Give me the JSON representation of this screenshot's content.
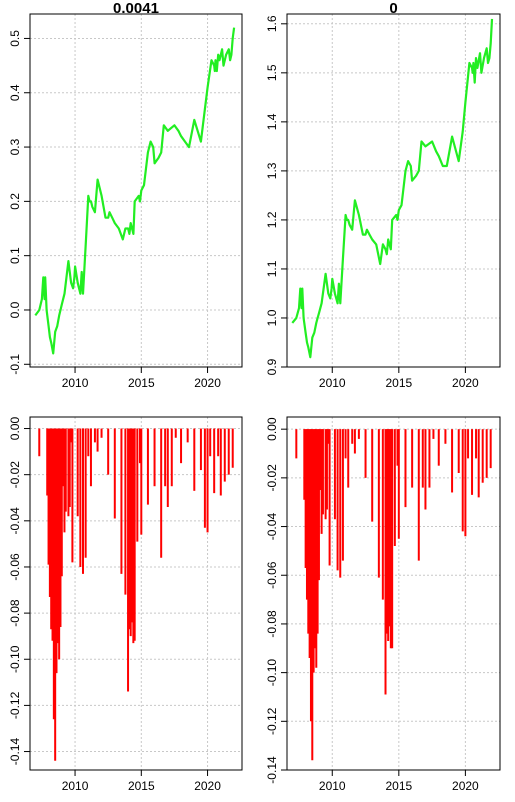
{
  "chart_data": [
    {
      "type": "line",
      "title": "0.0041",
      "xlabel": "",
      "ylabel": "",
      "xlim": [
        2006.6,
        2022.6
      ],
      "ylim": [
        -0.105,
        0.545
      ],
      "x_ticks": [
        "2010",
        "2015",
        "2020"
      ],
      "y_ticks": [
        "-0.1",
        "0.0",
        "0.1",
        "0.2",
        "0.3",
        "0.4",
        "0.5"
      ],
      "grid": true,
      "series": [
        {
          "color": "#22ee22",
          "x": [
            2007.0,
            2007.3,
            2007.5,
            2007.6,
            2007.7,
            2007.75,
            2007.85,
            2008.0,
            2008.1,
            2008.2,
            2008.35,
            2008.5,
            2008.65,
            2008.8,
            2008.9,
            2009.0,
            2009.2,
            2009.5,
            2009.7,
            2009.85,
            2009.95,
            2010.0,
            2010.2,
            2010.4,
            2010.5,
            2010.6,
            2010.8,
            2011.0,
            2011.1,
            2011.2,
            2011.3,
            2011.5,
            2011.7,
            2012.0,
            2012.3,
            2012.5,
            2012.6,
            2012.8,
            2013.0,
            2013.3,
            2013.6,
            2013.8,
            2014.0,
            2014.1,
            2014.2,
            2014.4,
            2014.5,
            2014.8,
            2014.9,
            2015.0,
            2015.2,
            2015.5,
            2015.7,
            2015.9,
            2016.0,
            2016.3,
            2016.5,
            2016.7,
            2017.0,
            2017.5,
            2017.8,
            2018.0,
            2018.3,
            2018.6,
            2019.0,
            2019.5,
            2019.8,
            2020.0,
            2020.3,
            2020.5,
            2020.55,
            2020.6,
            2020.7,
            2020.8,
            2020.9,
            2021.1,
            2021.2,
            2021.4,
            2021.6,
            2021.7,
            2021.8,
            2021.9,
            2022.0
          ],
          "y": [
            -0.01,
            0.0,
            0.02,
            0.06,
            0.02,
            0.06,
            0.0,
            -0.03,
            -0.05,
            -0.06,
            -0.08,
            -0.04,
            -0.03,
            -0.01,
            0.0,
            0.01,
            0.03,
            0.09,
            0.05,
            0.04,
            0.06,
            0.08,
            0.05,
            0.03,
            0.07,
            0.03,
            0.12,
            0.21,
            0.2,
            0.2,
            0.19,
            0.18,
            0.24,
            0.21,
            0.17,
            0.17,
            0.18,
            0.17,
            0.16,
            0.15,
            0.13,
            0.15,
            0.15,
            0.14,
            0.16,
            0.14,
            0.2,
            0.21,
            0.2,
            0.22,
            0.23,
            0.29,
            0.31,
            0.3,
            0.27,
            0.28,
            0.29,
            0.34,
            0.33,
            0.34,
            0.33,
            0.32,
            0.31,
            0.3,
            0.35,
            0.31,
            0.37,
            0.41,
            0.46,
            0.45,
            0.44,
            0.46,
            0.44,
            0.47,
            0.46,
            0.48,
            0.45,
            0.47,
            0.48,
            0.46,
            0.47,
            0.5,
            0.52
          ]
        }
      ]
    },
    {
      "type": "line",
      "title": "0",
      "xlabel": "",
      "ylabel": "",
      "xlim": [
        2006.6,
        2022.6
      ],
      "ylim": [
        0.9,
        1.62
      ],
      "x_ticks": [
        "2010",
        "2015",
        "2020"
      ],
      "y_ticks": [
        "0.9",
        "1.0",
        "1.1",
        "1.2",
        "1.3",
        "1.4",
        "1.5",
        "1.6"
      ],
      "grid": true,
      "series": [
        {
          "color": "#22ee22",
          "x": [
            2007.0,
            2007.3,
            2007.5,
            2007.6,
            2007.7,
            2007.75,
            2007.85,
            2008.0,
            2008.1,
            2008.2,
            2008.35,
            2008.5,
            2008.65,
            2008.8,
            2008.9,
            2009.0,
            2009.2,
            2009.5,
            2009.7,
            2009.85,
            2009.95,
            2010.0,
            2010.2,
            2010.4,
            2010.5,
            2010.6,
            2010.8,
            2011.0,
            2011.1,
            2011.2,
            2011.3,
            2011.5,
            2011.7,
            2012.0,
            2012.3,
            2012.5,
            2012.6,
            2012.8,
            2013.0,
            2013.3,
            2013.6,
            2013.8,
            2014.0,
            2014.1,
            2014.2,
            2014.4,
            2014.5,
            2014.8,
            2014.9,
            2015.0,
            2015.2,
            2015.5,
            2015.7,
            2015.9,
            2016.0,
            2016.3,
            2016.5,
            2016.7,
            2017.0,
            2017.5,
            2017.8,
            2018.0,
            2018.3,
            2018.6,
            2019.0,
            2019.5,
            2019.8,
            2020.0,
            2020.3,
            2020.5,
            2020.55,
            2020.6,
            2020.7,
            2020.8,
            2020.9,
            2021.1,
            2021.2,
            2021.4,
            2021.6,
            2021.7,
            2021.8,
            2021.9,
            2022.0
          ],
          "y": [
            0.99,
            1.0,
            1.02,
            1.06,
            1.02,
            1.06,
            1.0,
            0.97,
            0.95,
            0.94,
            0.92,
            0.96,
            0.97,
            0.99,
            1.0,
            1.01,
            1.03,
            1.09,
            1.05,
            1.04,
            1.06,
            1.08,
            1.05,
            1.03,
            1.07,
            1.03,
            1.12,
            1.21,
            1.2,
            1.2,
            1.19,
            1.18,
            1.24,
            1.21,
            1.17,
            1.17,
            1.18,
            1.17,
            1.16,
            1.15,
            1.11,
            1.15,
            1.14,
            1.13,
            1.16,
            1.14,
            1.2,
            1.21,
            1.2,
            1.22,
            1.23,
            1.3,
            1.32,
            1.31,
            1.28,
            1.29,
            1.3,
            1.36,
            1.35,
            1.36,
            1.34,
            1.33,
            1.31,
            1.31,
            1.37,
            1.32,
            1.38,
            1.44,
            1.52,
            1.51,
            1.5,
            1.52,
            1.48,
            1.53,
            1.51,
            1.54,
            1.5,
            1.53,
            1.55,
            1.52,
            1.53,
            1.56,
            1.61
          ]
        }
      ]
    },
    {
      "type": "bar",
      "title": "",
      "xlabel": "",
      "ylabel": "",
      "xlim": [
        2006.6,
        2022.6
      ],
      "ylim": [
        -0.148,
        0.005
      ],
      "x_ticks": [
        "2010",
        "2015",
        "2020"
      ],
      "y_ticks": [
        "0.00",
        "-0.02",
        "-0.04",
        "-0.06",
        "-0.08",
        "-0.10",
        "-0.12",
        "-0.14"
      ],
      "grid": true,
      "series": [
        {
          "color": "#ff0000",
          "x": [
            2007.3,
            2007.9,
            2008.0,
            2008.1,
            2008.2,
            2008.3,
            2008.4,
            2008.5,
            2008.6,
            2008.7,
            2008.8,
            2008.9,
            2009.0,
            2009.1,
            2009.2,
            2009.3,
            2009.5,
            2009.6,
            2009.7,
            2009.8,
            2010.2,
            2010.4,
            2010.6,
            2010.8,
            2011.0,
            2011.2,
            2011.5,
            2011.7,
            2012.0,
            2012.5,
            2013.0,
            2013.5,
            2013.8,
            2014.0,
            2014.1,
            2014.2,
            2014.3,
            2014.4,
            2014.5,
            2014.7,
            2014.9,
            2015.0,
            2015.5,
            2016.0,
            2016.5,
            2016.8,
            2017.0,
            2017.3,
            2017.6,
            2018.0,
            2018.5,
            2019.0,
            2019.5,
            2019.8,
            2020.0,
            2020.2,
            2020.5,
            2020.8,
            2021.0,
            2021.3,
            2021.6,
            2021.9
          ],
          "y": [
            -0.012,
            -0.029,
            -0.059,
            -0.073,
            -0.087,
            -0.092,
            -0.126,
            -0.144,
            -0.106,
            -0.093,
            -0.1,
            -0.086,
            -0.064,
            -0.025,
            -0.045,
            -0.036,
            -0.038,
            -0.034,
            -0.006,
            -0.058,
            -0.038,
            -0.06,
            -0.063,
            -0.056,
            -0.012,
            -0.025,
            -0.006,
            -0.01,
            -0.004,
            -0.02,
            -0.039,
            -0.063,
            -0.072,
            -0.114,
            -0.087,
            -0.09,
            -0.084,
            -0.093,
            -0.092,
            -0.049,
            -0.015,
            -0.046,
            -0.033,
            -0.025,
            -0.056,
            -0.025,
            -0.034,
            -0.025,
            -0.004,
            -0.015,
            -0.006,
            -0.027,
            -0.018,
            -0.043,
            -0.045,
            -0.012,
            -0.028,
            -0.012,
            -0.029,
            -0.023,
            -0.02,
            -0.017
          ]
        }
      ]
    },
    {
      "type": "bar",
      "title": "",
      "xlabel": "",
      "ylabel": "",
      "xlim": [
        2006.6,
        2022.6
      ],
      "ylim": [
        -0.14,
        0.005
      ],
      "x_ticks": [
        "2010",
        "2015",
        "2020"
      ],
      "y_ticks": [
        "0.00",
        "-0.02",
        "-0.04",
        "-0.06",
        "-0.08",
        "-0.10",
        "-0.12",
        "-0.14"
      ],
      "grid": true,
      "series": [
        {
          "color": "#ff0000",
          "x": [
            2007.3,
            2007.9,
            2008.0,
            2008.1,
            2008.2,
            2008.3,
            2008.4,
            2008.5,
            2008.6,
            2008.7,
            2008.8,
            2008.9,
            2009.0,
            2009.1,
            2009.2,
            2009.3,
            2009.5,
            2009.6,
            2009.7,
            2009.8,
            2010.2,
            2010.4,
            2010.6,
            2010.8,
            2011.0,
            2011.2,
            2011.5,
            2011.7,
            2012.0,
            2012.5,
            2013.0,
            2013.5,
            2013.8,
            2014.0,
            2014.1,
            2014.2,
            2014.3,
            2014.4,
            2014.5,
            2014.7,
            2014.9,
            2015.0,
            2015.5,
            2016.0,
            2016.5,
            2016.8,
            2017.0,
            2017.3,
            2017.6,
            2018.0,
            2018.5,
            2019.0,
            2019.5,
            2019.8,
            2020.0,
            2020.2,
            2020.5,
            2020.8,
            2021.0,
            2021.3,
            2021.6,
            2021.9
          ],
          "y": [
            -0.012,
            -0.029,
            -0.057,
            -0.07,
            -0.084,
            -0.094,
            -0.12,
            -0.136,
            -0.1,
            -0.09,
            -0.098,
            -0.084,
            -0.062,
            -0.025,
            -0.043,
            -0.035,
            -0.037,
            -0.033,
            -0.006,
            -0.056,
            -0.037,
            -0.058,
            -0.061,
            -0.054,
            -0.012,
            -0.024,
            -0.006,
            -0.01,
            -0.004,
            -0.02,
            -0.038,
            -0.061,
            -0.07,
            -0.109,
            -0.084,
            -0.087,
            -0.081,
            -0.09,
            -0.09,
            -0.048,
            -0.015,
            -0.045,
            -0.032,
            -0.024,
            -0.054,
            -0.024,
            -0.033,
            -0.024,
            -0.004,
            -0.015,
            -0.006,
            -0.026,
            -0.018,
            -0.042,
            -0.044,
            -0.012,
            -0.027,
            -0.012,
            -0.028,
            -0.022,
            -0.02,
            -0.016
          ]
        }
      ]
    }
  ]
}
